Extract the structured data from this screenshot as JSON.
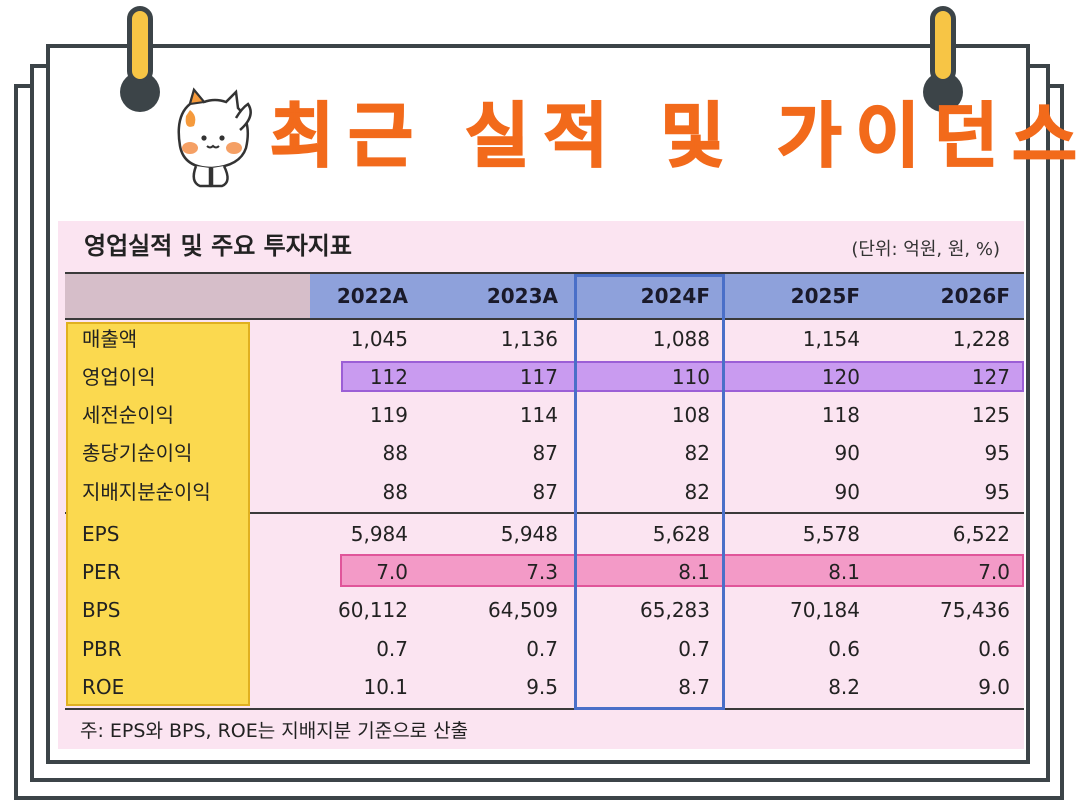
{
  "title": "최근 실적 및 가이던스",
  "table": {
    "title": "영업실적 및 주요 투자지표",
    "unit": "(단위: 억원, 원, %)",
    "years": [
      "2022A",
      "2023A",
      "2024F",
      "2025F",
      "2026F"
    ],
    "rows": [
      {
        "label": "매출액",
        "values": [
          "1,045",
          "1,136",
          "1,088",
          "1,154",
          "1,228"
        ]
      },
      {
        "label": "영업이익",
        "values": [
          "112",
          "117",
          "110",
          "120",
          "127"
        ]
      },
      {
        "label": "세전순이익",
        "values": [
          "119",
          "114",
          "108",
          "118",
          "125"
        ]
      },
      {
        "label": "총당기순이익",
        "values": [
          "88",
          "87",
          "82",
          "90",
          "95"
        ]
      },
      {
        "label": "지배지분순이익",
        "values": [
          "88",
          "87",
          "82",
          "90",
          "95"
        ]
      },
      {
        "label": "EPS",
        "values": [
          "5,984",
          "5,948",
          "5,628",
          "5,578",
          "6,522"
        ]
      },
      {
        "label": "PER",
        "values": [
          "7.0",
          "7.3",
          "8.1",
          "8.1",
          "7.0"
        ]
      },
      {
        "label": "BPS",
        "values": [
          "60,112",
          "64,509",
          "65,283",
          "70,184",
          "75,436"
        ]
      },
      {
        "label": "PBR",
        "values": [
          "0.7",
          "0.7",
          "0.7",
          "0.6",
          "0.6"
        ]
      },
      {
        "label": "ROE",
        "values": [
          "10.1",
          "9.5",
          "8.7",
          "8.2",
          "9.0"
        ]
      }
    ],
    "note": "주: EPS와 BPS, ROE는 지배지분 기준으로 산출"
  },
  "colors": {
    "title": "#f26a1b",
    "panel": "#fbe4f1",
    "header_years": "#8ea1db",
    "label_column": "#fbd94f",
    "highlight_operating_profit": "#c99bf0",
    "highlight_per": "#f39ac7",
    "current_year_box": "#4a6fc8"
  },
  "icons": [
    "cat-mascot-icon",
    "binder-ring-icon"
  ]
}
